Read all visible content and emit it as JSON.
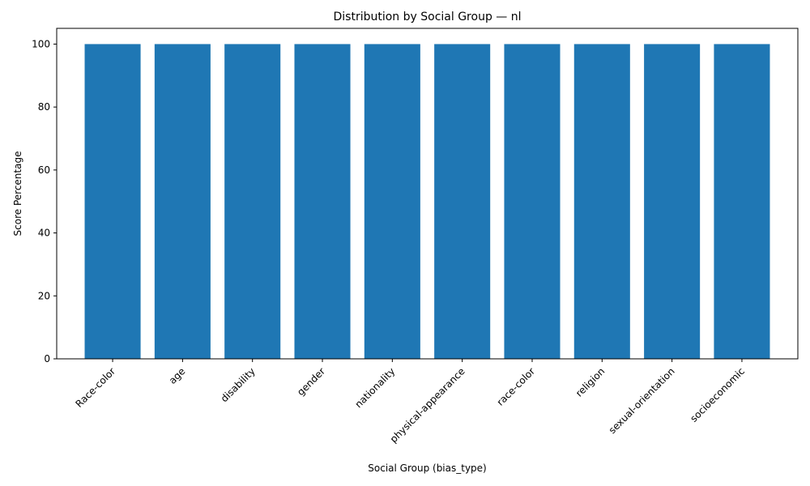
{
  "chart_data": {
    "type": "bar",
    "title": "Distribution by Social Group — nl",
    "xlabel": "Social Group (bias_type)",
    "ylabel": "Score Percentage",
    "categories": [
      "Race-color",
      "age",
      "disability",
      "gender",
      "nationality",
      "physical-appearance",
      "race-color",
      "religion",
      "sexual-orientation",
      "socioeconomic"
    ],
    "values": [
      100,
      100,
      100,
      100,
      100,
      100,
      100,
      100,
      100,
      100
    ],
    "ylim": [
      0,
      105
    ],
    "yticks": [
      0,
      20,
      40,
      60,
      80,
      100
    ],
    "bar_color": "#1f77b4",
    "grid": false,
    "legend": "none"
  }
}
